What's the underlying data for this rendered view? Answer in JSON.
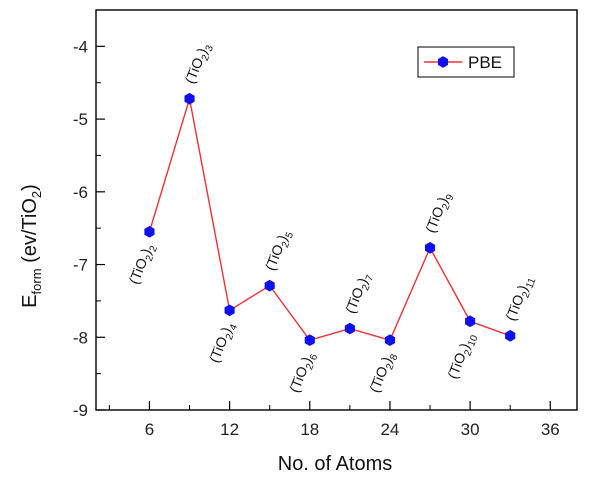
{
  "chart_data": {
    "type": "line",
    "xlabel": "No. of Atoms",
    "ylabel_main": "E",
    "ylabel_sub": "form",
    "ylabel_unit_pre": " (ev/TiO",
    "ylabel_unit_sub": "2",
    "ylabel_unit_post": ")",
    "xlim": [
      2,
      38
    ],
    "ylim": [
      -9,
      -3.5
    ],
    "xticks": [
      6,
      12,
      18,
      24,
      30,
      36
    ],
    "yticks": [
      -9,
      -8,
      -7,
      -6,
      -5,
      -4
    ],
    "grid": false,
    "legend": {
      "position": "top-right"
    },
    "series": [
      {
        "name": "PBE",
        "color": "#e8323a",
        "marker_color": "#1010ee",
        "marker": "hexagon",
        "x": [
          6,
          9,
          12,
          15,
          18,
          21,
          24,
          27,
          30,
          33
        ],
        "y": [
          -6.55,
          -4.72,
          -7.63,
          -7.29,
          -8.04,
          -7.88,
          -8.04,
          -6.77,
          -7.78,
          -7.98
        ]
      }
    ],
    "annotations": [
      {
        "base": "(TiO",
        "sub1": "2",
        "close": ")",
        "sub2": "2",
        "x": 6,
        "y": -6.55,
        "side": "below"
      },
      {
        "base": "(TiO",
        "sub1": "2",
        "close": ")",
        "sub2": "3",
        "x": 9,
        "y": -4.72,
        "side": "above"
      },
      {
        "base": "(TiO",
        "sub1": "2",
        "close": ")",
        "sub2": "4",
        "x": 12,
        "y": -7.63,
        "side": "below"
      },
      {
        "base": "(TiO",
        "sub1": "2",
        "close": ")",
        "sub2": "5",
        "x": 15,
        "y": -7.29,
        "side": "above"
      },
      {
        "base": "(TiO",
        "sub1": "2",
        "close": ")",
        "sub2": "6",
        "x": 18,
        "y": -8.04,
        "side": "below"
      },
      {
        "base": "(TiO",
        "sub1": "2",
        "close": ")",
        "sub2": "7",
        "x": 21,
        "y": -7.88,
        "side": "above"
      },
      {
        "base": "(TiO",
        "sub1": "2",
        "close": ")",
        "sub2": "8",
        "x": 24,
        "y": -8.04,
        "side": "below"
      },
      {
        "base": "(TiO",
        "sub1": "2",
        "close": ")",
        "sub2": "9",
        "x": 27,
        "y": -6.77,
        "side": "above"
      },
      {
        "base": "(TiO",
        "sub1": "2",
        "close": ")",
        "sub2": "10",
        "x": 30,
        "y": -7.78,
        "side": "below"
      },
      {
        "base": "(TiO",
        "sub1": "2",
        "close": ")",
        "sub2": "11",
        "x": 33,
        "y": -7.98,
        "side": "above"
      }
    ]
  }
}
